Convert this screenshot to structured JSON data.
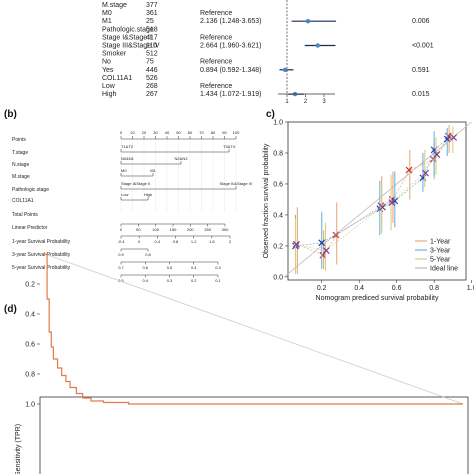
{
  "panels": {
    "b": "(b)",
    "c": "c)",
    "d": "(d)"
  },
  "forest": {
    "rows": [
      {
        "label": "M.stage",
        "n": "377",
        "hr": "",
        "p": ""
      },
      {
        "label": "M0",
        "n": "361",
        "hr": "Reference",
        "p": ""
      },
      {
        "label": "M1",
        "n": "25",
        "hr": "2.136 (1.248-3.653)",
        "p": "0.006",
        "est": 2.136,
        "lo": 1.248,
        "hi": 3.653
      },
      {
        "label": "Pathologic.stage",
        "n": "518",
        "hr": "",
        "p": ""
      },
      {
        "label": "Stage I&Stage II",
        "n": "417",
        "hr": "Reference",
        "p": ""
      },
      {
        "label": "Stage III&Stage IV",
        "n": "110",
        "hr": "2.664 (1.960-3.621)",
        "p": "<0.001",
        "est": 2.664,
        "lo": 1.96,
        "hi": 3.621
      },
      {
        "label": "Smoker",
        "n": "512",
        "hr": "",
        "p": ""
      },
      {
        "label": "No",
        "n": "75",
        "hr": "Reference",
        "p": ""
      },
      {
        "label": "Yes",
        "n": "446",
        "hr": "0.894 (0.592-1.348)",
        "p": "0.591",
        "est": 0.894,
        "lo": 0.592,
        "hi": 1.348
      },
      {
        "label": "COL11A1",
        "n": "526",
        "hr": "",
        "p": ""
      },
      {
        "label": "Low",
        "n": "268",
        "hr": "Reference",
        "p": ""
      },
      {
        "label": "High",
        "n": "267",
        "hr": "1.434 (1.072-1.919)",
        "p": "0.015",
        "est": 1.434,
        "lo": 1.072,
        "hi": 1.919
      }
    ],
    "ticks": [
      "1",
      "2",
      "3"
    ]
  },
  "nomogram": {
    "rows": [
      "Points",
      "T.stage",
      "N.stage",
      "M.stage",
      "Pathologic.stage",
      "COL11A1",
      "Total Points",
      "Linear Predictor",
      "1-year Survival Probability",
      "3-year Survival Probability",
      "5-year Survival Probability"
    ],
    "points_ticks": [
      "0",
      "10",
      "20",
      "30",
      "40",
      "50",
      "60",
      "70",
      "80",
      "90",
      "100"
    ],
    "tstage_labels": [
      "T1&T2",
      "T3&T4"
    ],
    "nstage_labels": [
      "N0&N1",
      "N2&N3"
    ],
    "mstage_labels": [
      "M0",
      "M1"
    ],
    "pstage_labels": [
      "Stage I&Stage II",
      "Stage III&Stage IV"
    ],
    "col_labels": [
      "Low",
      "High"
    ],
    "total_ticks": [
      "0",
      "50",
      "100",
      "150",
      "200",
      "250",
      "300"
    ],
    "lp_ticks": [
      "-0.4",
      "0",
      "0.4",
      "0.8",
      "1.2",
      "1.6",
      "2"
    ],
    "y1_ticks": [
      "0.9",
      "0.8"
    ],
    "y3_ticks": [
      "0.7",
      "0.6",
      "0.5",
      "0.4",
      "0.3"
    ],
    "y5_ticks": [
      "0.5",
      "0.4",
      "0.3",
      "0.2",
      "0.1"
    ]
  },
  "chart_data": [
    {
      "type": "scatter",
      "xlabel": "Nomogram prediced survival probability",
      "ylabel": "Observed fraction survival probability",
      "xlim": [
        0,
        1
      ],
      "ylim": [
        0,
        1
      ],
      "xticks": [
        "0.2",
        "0.4",
        "0.6",
        "0.8",
        "1.0"
      ],
      "yticks": [
        "0.0",
        "0.2",
        "0.4",
        "0.6",
        "0.8",
        "1.0"
      ],
      "legend_position": "bottom-right",
      "series": [
        {
          "name": "1-Year",
          "color": "#e8a97f",
          "points": [
            [
              0.07,
              0.21
            ],
            [
              0.21,
              0.14
            ],
            [
              0.28,
              0.27
            ],
            [
              0.52,
              0.46
            ],
            [
              0.58,
              0.5
            ],
            [
              0.67,
              0.69
            ],
            [
              0.8,
              0.76
            ],
            [
              0.88,
              0.91
            ]
          ],
          "err": [
            [
              0.02,
              0.45
            ],
            [
              0.05,
              0.3
            ],
            [
              0.08,
              0.48
            ],
            [
              0.3,
              0.65
            ],
            [
              0.35,
              0.68
            ],
            [
              0.5,
              0.82
            ],
            [
              0.63,
              0.88
            ],
            [
              0.8,
              0.98
            ]
          ]
        },
        {
          "name": "3-Year",
          "color": "#6fb3e0",
          "points": [
            [
              0.06,
              0.2
            ],
            [
              0.2,
              0.22
            ],
            [
              0.51,
              0.44
            ],
            [
              0.59,
              0.49
            ],
            [
              0.74,
              0.64
            ],
            [
              0.8,
              0.82
            ],
            [
              0.87,
              0.89
            ]
          ],
          "err": [
            [
              0.02,
              0.4
            ],
            [
              0.05,
              0.42
            ],
            [
              0.27,
              0.62
            ],
            [
              0.32,
              0.68
            ],
            [
              0.55,
              0.8
            ],
            [
              0.65,
              0.94
            ],
            [
              0.78,
              0.96
            ]
          ]
        },
        {
          "name": "5-Year",
          "color": "#d8cf82",
          "points": [
            [
              0.06,
              0.21
            ],
            [
              0.22,
              0.17
            ],
            [
              0.52,
              0.45
            ],
            [
              0.57,
              0.48
            ],
            [
              0.75,
              0.67
            ],
            [
              0.81,
              0.79
            ],
            [
              0.9,
              0.9
            ]
          ],
          "err": [
            [
              0.02,
              0.38
            ],
            [
              0.04,
              0.35
            ],
            [
              0.28,
              0.6
            ],
            [
              0.3,
              0.66
            ],
            [
              0.58,
              0.82
            ],
            [
              0.66,
              0.9
            ],
            [
              0.8,
              0.97
            ]
          ]
        },
        {
          "name": "Ideal line",
          "color": "#bbbbbb",
          "points": [
            [
              0,
              0
            ],
            [
              1,
              1
            ]
          ]
        }
      ]
    },
    {
      "type": "line",
      "ylabel": "Sensitivity (TPR)",
      "xlim": [
        0,
        1
      ],
      "ylim": [
        0,
        1
      ],
      "yticks": [
        "1.0",
        "0.8",
        "0.6",
        "0.4",
        "0.2"
      ],
      "series": [
        {
          "name": "",
          "color": "#e07b4a",
          "points": [
            [
              0,
              0
            ],
            [
              0.005,
              0.3
            ],
            [
              0.01,
              0.52
            ],
            [
              0.015,
              0.62
            ],
            [
              0.02,
              0.7
            ],
            [
              0.03,
              0.76
            ],
            [
              0.04,
              0.81
            ],
            [
              0.05,
              0.85
            ],
            [
              0.06,
              0.89
            ],
            [
              0.075,
              0.93
            ],
            [
              0.09,
              0.96
            ],
            [
              0.11,
              0.98
            ],
            [
              0.14,
              0.99
            ],
            [
              0.2,
              1.0
            ],
            [
              1,
              1
            ]
          ]
        },
        {
          "name": "",
          "color": "#cccccc",
          "points": [
            [
              0,
              0
            ],
            [
              1,
              1
            ]
          ]
        }
      ]
    }
  ]
}
